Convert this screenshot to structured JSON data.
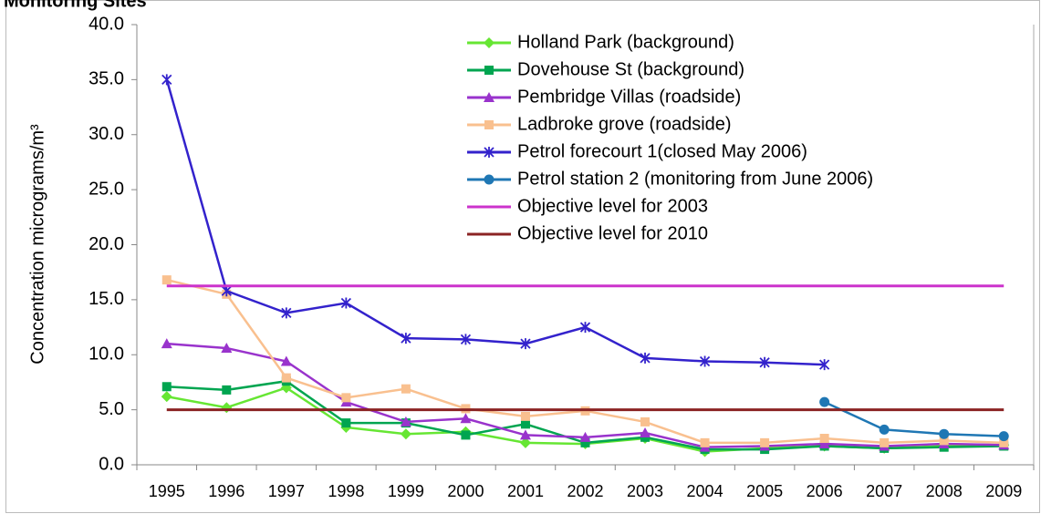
{
  "chart_data": {
    "type": "line",
    "title": "Monitoring Sites",
    "y_label": "Concentration micrograms/m³",
    "categories": [
      "1995",
      "1996",
      "1997",
      "1998",
      "1999",
      "2000",
      "2001",
      "2002",
      "2003",
      "2004",
      "2005",
      "2006",
      "2007",
      "2008",
      "2009"
    ],
    "ylim": [
      0,
      40
    ],
    "yticks": [
      {
        "value": 0,
        "label": "0.0"
      },
      {
        "value": 5,
        "label": "5.0"
      },
      {
        "value": 10,
        "label": "10.0"
      },
      {
        "value": 15,
        "label": "15.0"
      },
      {
        "value": 20,
        "label": "20.0"
      },
      {
        "value": 25,
        "label": "25.0"
      },
      {
        "value": 30,
        "label": "30.0"
      },
      {
        "value": 35,
        "label": "35.0"
      },
      {
        "value": 40,
        "label": "40.0"
      }
    ],
    "grid": false,
    "legend": "top-right",
    "series": [
      {
        "name": "Holland Park (background)",
        "color": "#66e633",
        "marker": "diamond",
        "values": [
          6.2,
          5.2,
          7.0,
          3.4,
          2.8,
          3.0,
          2.0,
          1.9,
          2.4,
          1.2,
          1.5,
          1.7,
          1.5,
          1.7,
          1.8
        ]
      },
      {
        "name": "Dovehouse St (background)",
        "color": "#00a550",
        "marker": "square",
        "values": [
          7.1,
          6.8,
          7.6,
          3.8,
          3.8,
          2.7,
          3.7,
          2.0,
          2.5,
          1.4,
          1.4,
          1.7,
          1.5,
          1.6,
          1.7
        ]
      },
      {
        "name": "Pembridge Villas (roadside)",
        "color": "#9933cc",
        "marker": "triangle",
        "values": [
          11.0,
          10.6,
          9.4,
          5.7,
          3.9,
          4.2,
          2.7,
          2.5,
          2.9,
          1.6,
          1.7,
          1.9,
          1.7,
          1.9,
          1.8
        ]
      },
      {
        "name": "Ladbroke grove  (roadside)",
        "color": "#f9c08f",
        "marker": "square",
        "values": [
          16.8,
          15.5,
          7.9,
          6.1,
          6.9,
          5.1,
          4.4,
          4.9,
          3.9,
          2.0,
          2.0,
          2.4,
          2.0,
          2.2,
          2.0
        ]
      },
      {
        "name": "Petrol forecourt 1(closed May 2006)",
        "color": "#3322cc",
        "marker": "star",
        "values": [
          35.0,
          15.8,
          13.8,
          14.7,
          11.5,
          11.4,
          11.0,
          12.5,
          9.7,
          9.4,
          9.3,
          9.1,
          null,
          null,
          null
        ]
      },
      {
        "name": "Petrol station 2 (monitoring from June 2006)",
        "color": "#1f77b4",
        "marker": "circle",
        "values": [
          null,
          null,
          null,
          null,
          null,
          null,
          null,
          null,
          null,
          null,
          null,
          5.7,
          3.2,
          2.8,
          2.6
        ]
      },
      {
        "name": "Objective level for 2003",
        "color": "#cc33cc",
        "marker": "none",
        "values": [
          16.25,
          16.25,
          16.25,
          16.25,
          16.25,
          16.25,
          16.25,
          16.25,
          16.25,
          16.25,
          16.25,
          16.25,
          16.25,
          16.25,
          16.25
        ]
      },
      {
        "name": "Objective level for 2010",
        "color": "#8b2323",
        "marker": "none",
        "values": [
          5,
          5,
          5,
          5,
          5,
          5,
          5,
          5,
          5,
          5,
          5,
          5,
          5,
          5,
          5
        ]
      }
    ]
  }
}
